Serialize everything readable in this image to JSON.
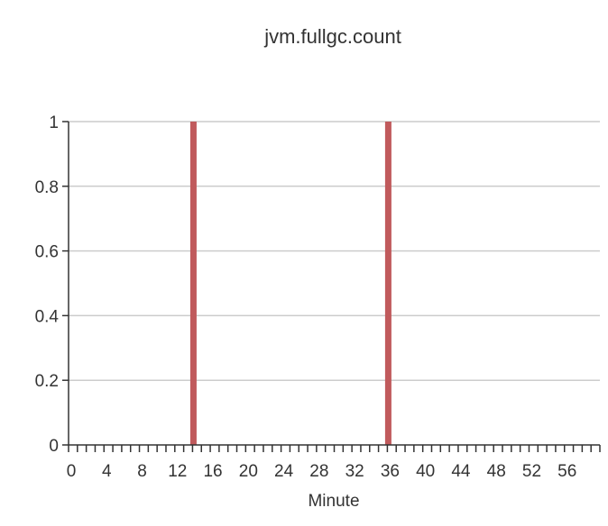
{
  "chart_data": {
    "type": "bar",
    "title": "jvm.fullgc.count",
    "xlabel": "Minute",
    "ylabel": "",
    "x": [
      0,
      1,
      2,
      3,
      4,
      5,
      6,
      7,
      8,
      9,
      10,
      11,
      12,
      13,
      14,
      15,
      16,
      17,
      18,
      19,
      20,
      21,
      22,
      23,
      24,
      25,
      26,
      27,
      28,
      29,
      30,
      31,
      32,
      33,
      34,
      35,
      36,
      37,
      38,
      39,
      40,
      41,
      42,
      43,
      44,
      45,
      46,
      47,
      48,
      49,
      50,
      51,
      52,
      53,
      54,
      55,
      56,
      57,
      58,
      59
    ],
    "values": [
      0,
      0,
      0,
      0,
      0,
      0,
      0,
      0,
      0,
      0,
      0,
      0,
      0,
      0,
      1,
      0,
      0,
      0,
      0,
      0,
      0,
      0,
      0,
      0,
      0,
      0,
      0,
      0,
      0,
      0,
      0,
      0,
      0,
      0,
      0,
      0,
      1,
      0,
      0,
      0,
      0,
      0,
      0,
      0,
      0,
      0,
      0,
      0,
      0,
      0,
      0,
      0,
      0,
      0,
      0,
      0,
      0,
      0,
      0,
      0
    ],
    "xlim": [
      0,
      60
    ],
    "ylim": [
      0,
      1
    ],
    "x_tick_labels": [
      "0",
      "4",
      "8",
      "12",
      "16",
      "20",
      "24",
      "28",
      "32",
      "36",
      "40",
      "44",
      "48",
      "52",
      "56"
    ],
    "y_tick_labels": [
      "0",
      "0.2",
      "0.4",
      "0.6",
      "0.8",
      "1"
    ],
    "grid": true,
    "legend": "none",
    "bar_color": "#c05a5c",
    "grid_color": "#cccccc",
    "axis_color": "#333333"
  }
}
